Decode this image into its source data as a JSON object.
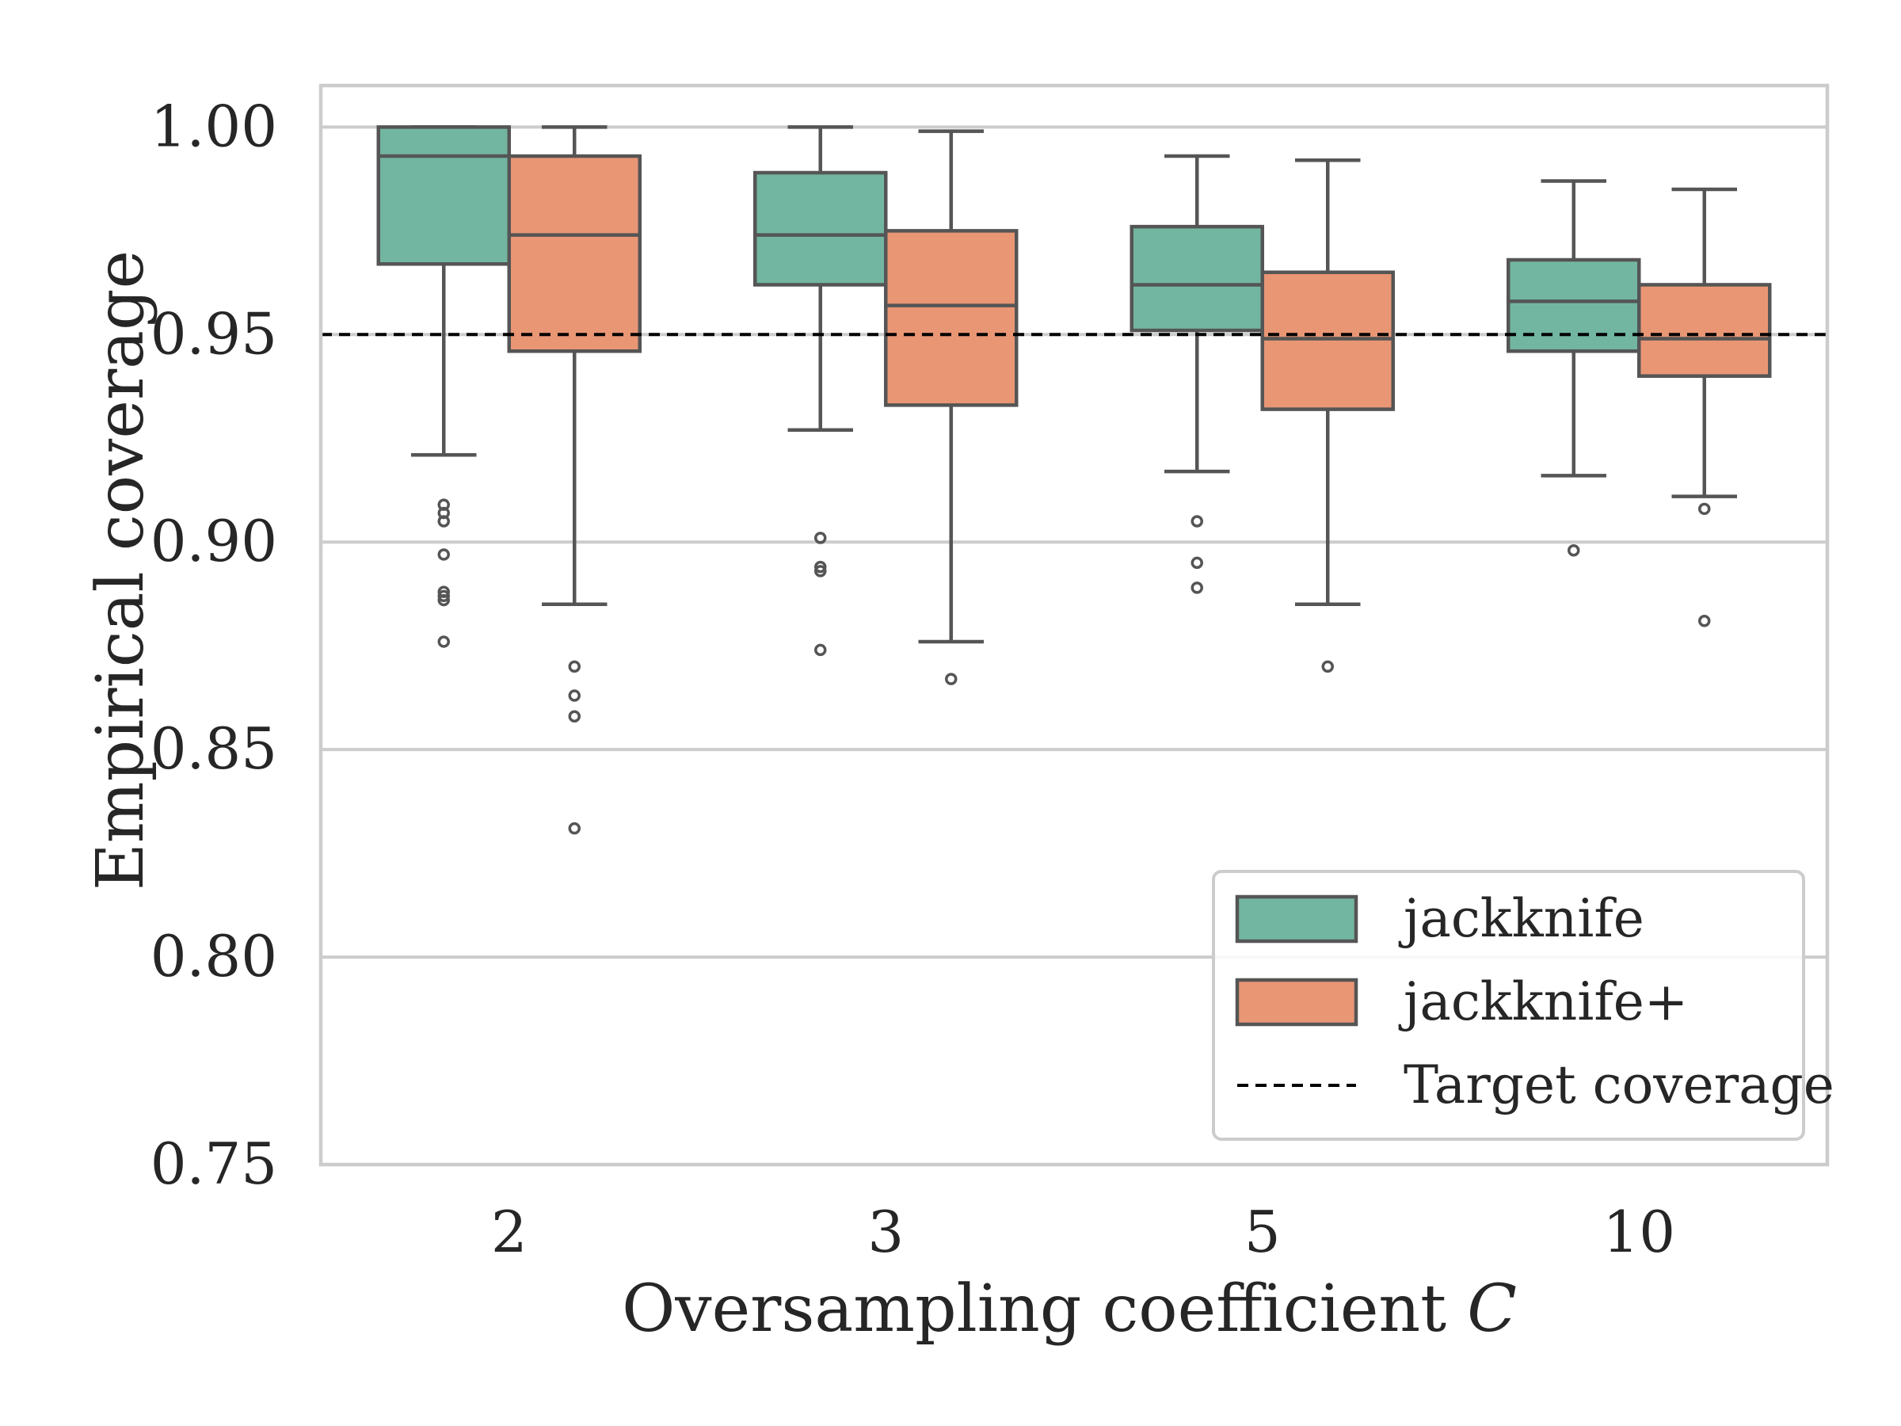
{
  "chart_data": {
    "type": "box",
    "title": "",
    "xlabel_text": "Oversampling coefficient ",
    "xlabel_var": "C",
    "ylabel": "Empirical coverage",
    "categories": [
      "2",
      "3",
      "5",
      "10"
    ],
    "ylim": [
      0.75,
      1.01
    ],
    "yticks": [
      0.75,
      0.8,
      0.85,
      0.9,
      0.95,
      1.0
    ],
    "ytick_labels": [
      "0.75",
      "0.80",
      "0.85",
      "0.90",
      "0.95",
      "1.00"
    ],
    "grid": "horizontal",
    "legend_position": "bottom-right",
    "target": {
      "name": "Target coverage",
      "value": 0.95,
      "color": "#000000"
    },
    "series": [
      {
        "name": "jackknife",
        "color": "#72b6a1",
        "boxes": [
          {
            "whisker_low": 0.921,
            "q1": 0.967,
            "median": 0.993,
            "q3": 1.0,
            "whisker_high": 1.0,
            "outliers": [
              0.909,
              0.907,
              0.905,
              0.897,
              0.888,
              0.887,
              0.886,
              0.876
            ]
          },
          {
            "whisker_low": 0.927,
            "q1": 0.962,
            "median": 0.974,
            "q3": 0.989,
            "whisker_high": 1.0,
            "outliers": [
              0.901,
              0.894,
              0.893,
              0.874
            ]
          },
          {
            "whisker_low": 0.917,
            "q1": 0.951,
            "median": 0.962,
            "q3": 0.976,
            "whisker_high": 0.993,
            "outliers": [
              0.905,
              0.895,
              0.889
            ]
          },
          {
            "whisker_low": 0.916,
            "q1": 0.946,
            "median": 0.958,
            "q3": 0.968,
            "whisker_high": 0.987,
            "outliers": [
              0.898
            ]
          }
        ]
      },
      {
        "name": "jackknife+",
        "color": "#e99675",
        "boxes": [
          {
            "whisker_low": 0.885,
            "q1": 0.946,
            "median": 0.974,
            "q3": 0.993,
            "whisker_high": 1.0,
            "outliers": [
              0.87,
              0.863,
              0.858,
              0.831
            ]
          },
          {
            "whisker_low": 0.876,
            "q1": 0.933,
            "median": 0.957,
            "q3": 0.975,
            "whisker_high": 0.999,
            "outliers": [
              0.867
            ]
          },
          {
            "whisker_low": 0.885,
            "q1": 0.932,
            "median": 0.949,
            "q3": 0.965,
            "whisker_high": 0.992,
            "outliers": [
              0.87
            ]
          },
          {
            "whisker_low": 0.911,
            "q1": 0.94,
            "median": 0.949,
            "q3": 0.962,
            "whisker_high": 0.985,
            "outliers": [
              0.908,
              0.881
            ]
          }
        ]
      }
    ]
  }
}
